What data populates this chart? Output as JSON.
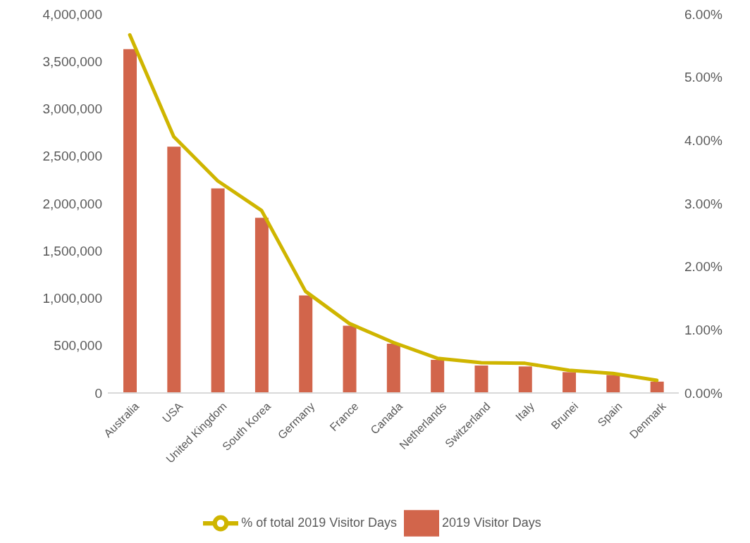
{
  "chart_data": {
    "type": "bar",
    "categories": [
      "Australia",
      "USA",
      "United Kingdom",
      "South Korea",
      "Germany",
      "France",
      "Canada",
      "Netherlands",
      "Switzerland",
      "Italy",
      "Brunei",
      "Spain",
      "Denmark"
    ],
    "series": [
      {
        "name": "2019 Visitor Days",
        "color": "#d2654b",
        "values": [
          3630000,
          2600000,
          2160000,
          1850000,
          1030000,
          710000,
          520000,
          350000,
          290000,
          280000,
          220000,
          190000,
          120000
        ]
      },
      {
        "name": "% of total 2019 Visitor Days",
        "type": "line",
        "axis": "y2",
        "color": "#cfb500",
        "values": [
          5.67,
          4.06,
          3.36,
          2.89,
          1.61,
          1.1,
          0.8,
          0.55,
          0.48,
          0.47,
          0.36,
          0.31,
          0.2
        ]
      }
    ],
    "ylim": [
      0,
      4000000
    ],
    "yticks": [
      {
        "value": 0,
        "label": "0"
      },
      {
        "value": 500000,
        "label": "500,000"
      },
      {
        "value": 1000000,
        "label": "1,000,000"
      },
      {
        "value": 1500000,
        "label": "1,500,000"
      },
      {
        "value": 2000000,
        "label": "2,000,000"
      },
      {
        "value": 2500000,
        "label": "2,500,000"
      },
      {
        "value": 3000000,
        "label": "3,000,000"
      },
      {
        "value": 3500000,
        "label": "3,500,000"
      },
      {
        "value": 4000000,
        "label": "4,000,000"
      }
    ],
    "y2lim": [
      0,
      6
    ],
    "y2ticks": [
      {
        "value": 0,
        "label": "0.00%"
      },
      {
        "value": 1,
        "label": "1.00%"
      },
      {
        "value": 2,
        "label": "2.00%"
      },
      {
        "value": 3,
        "label": "3.00%"
      },
      {
        "value": 4,
        "label": "4.00%"
      },
      {
        "value": 5,
        "label": "5.00%"
      },
      {
        "value": 6,
        "label": "6.00%"
      }
    ],
    "grid": false,
    "legend": "bottom",
    "marker": "none",
    "line_style": "solid"
  }
}
